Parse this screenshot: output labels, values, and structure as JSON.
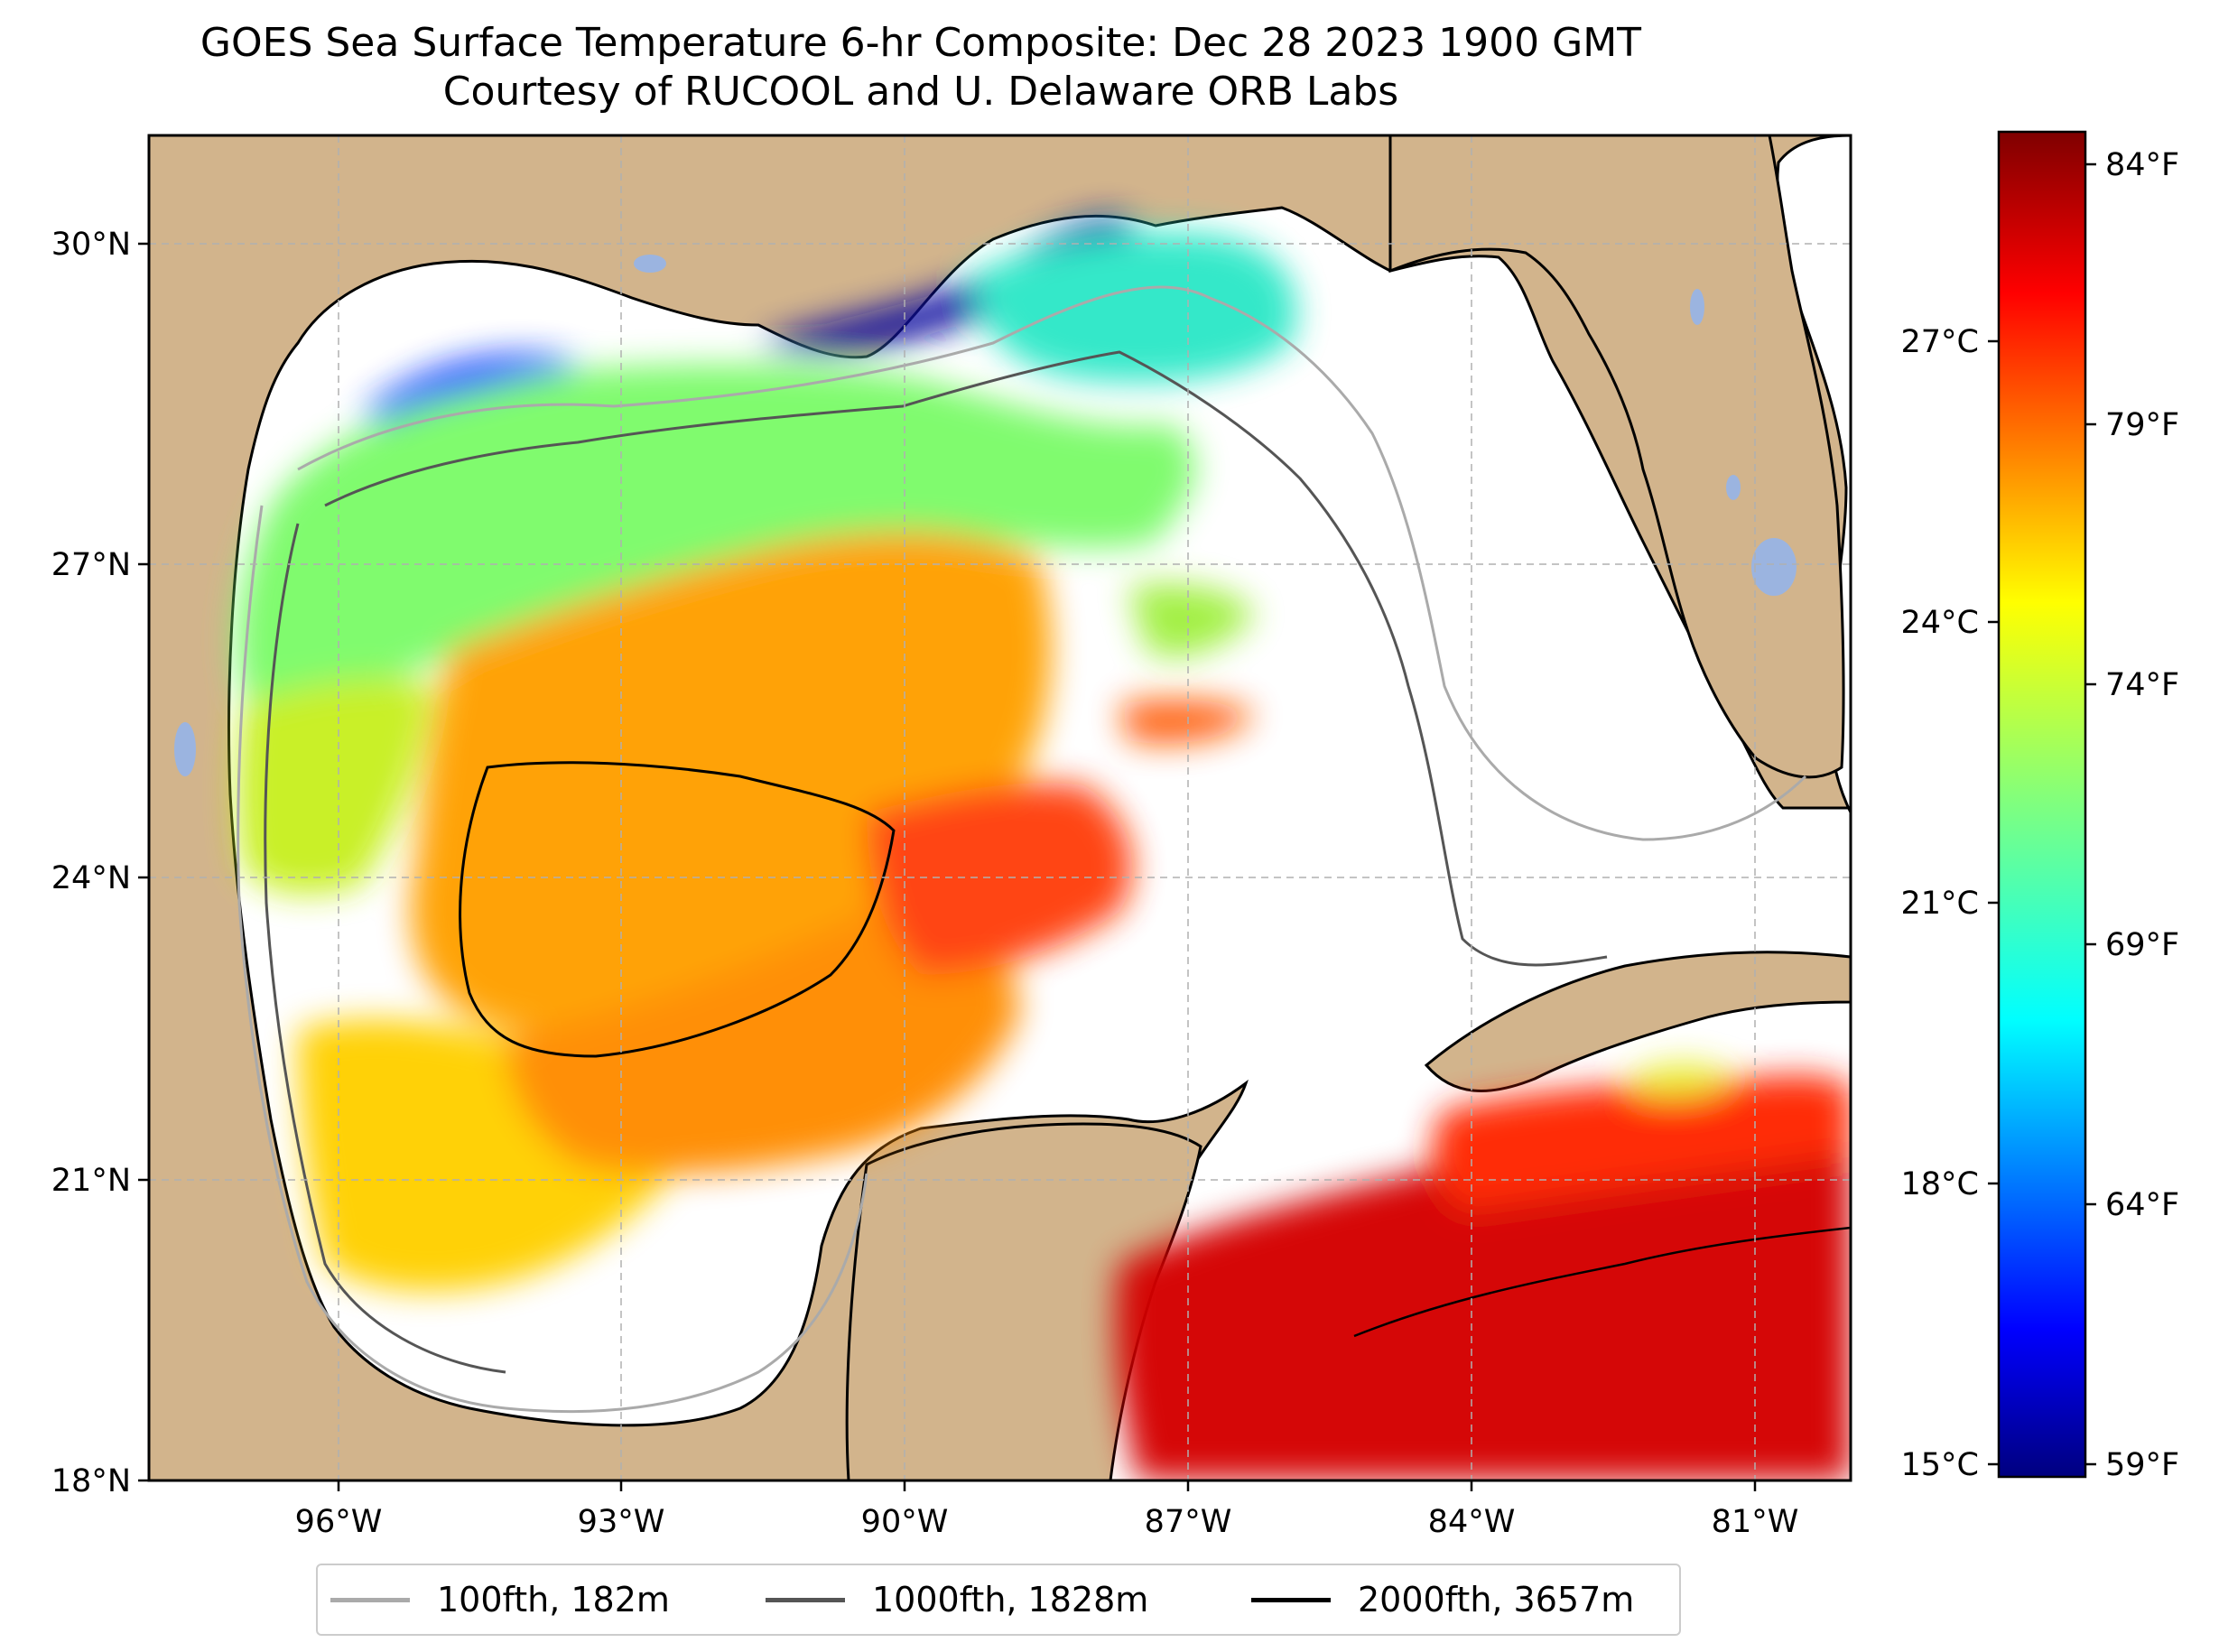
{
  "title": {
    "line1": "GOES Sea Surface Temperature 6-hr Composite: Dec 28 2023 1900 GMT",
    "line2": "Courtesy of RUCOOL and U. Delaware ORB Labs"
  },
  "map": {
    "lon_ticks": [
      "96°W",
      "93°W",
      "90°W",
      "87°W",
      "84°W",
      "81°W"
    ],
    "lat_ticks": [
      "18°N",
      "21°N",
      "24°N",
      "27°N",
      "30°N"
    ],
    "land_color": "#d2b48c",
    "water_color": "#ffffff",
    "lake_color": "#9bb4e0",
    "coastline_color": "#000000",
    "grid": "dashed"
  },
  "colorbar": {
    "colormap": "jet",
    "celsius_ticks": [
      "15°C",
      "18°C",
      "21°C",
      "24°C",
      "27°C"
    ],
    "fahrenheit_ticks": [
      "59°F",
      "64°F",
      "69°F",
      "74°F",
      "79°F",
      "84°F"
    ]
  },
  "legend": {
    "items": [
      {
        "label": "100fth, 182m",
        "color": "#aaaaaa"
      },
      {
        "label": "1000fth, 1828m",
        "color": "#555555"
      },
      {
        "label": "2000fth, 3657m",
        "color": "#000000"
      }
    ]
  }
}
